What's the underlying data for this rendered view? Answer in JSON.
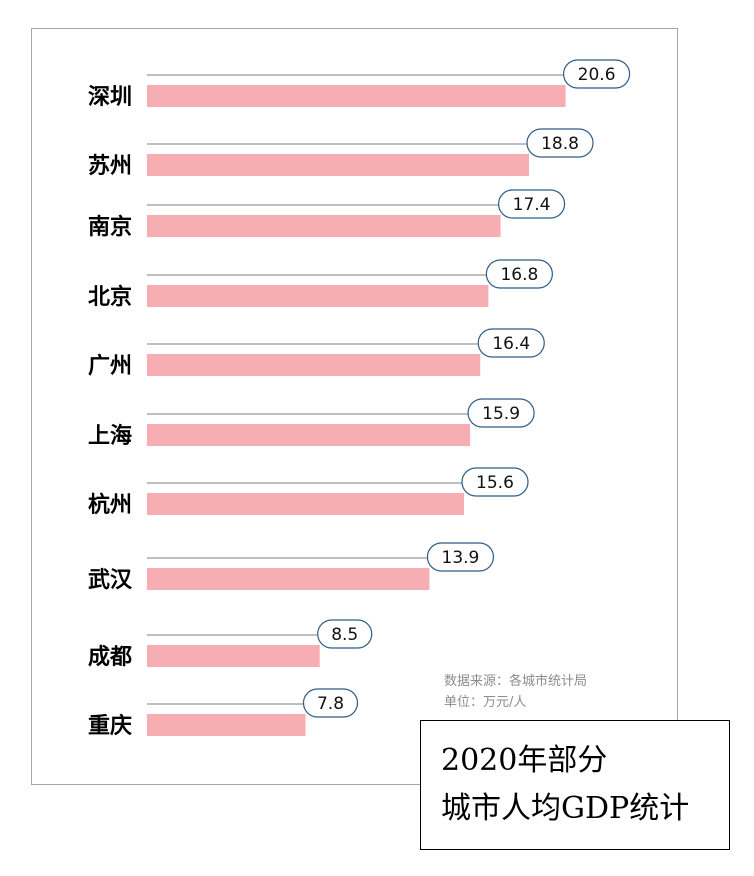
{
  "chart_data": {
    "type": "bar",
    "orientation": "horizontal",
    "categories": [
      "深圳",
      "苏州",
      "南京",
      "北京",
      "广州",
      "上海",
      "杭州",
      "武汉",
      "成都",
      "重庆"
    ],
    "values": [
      20.6,
      18.8,
      17.4,
      16.8,
      16.4,
      15.9,
      15.6,
      13.9,
      8.5,
      7.8
    ],
    "value_labels": [
      "20.6",
      "18.8",
      "17.4",
      "16.8",
      "16.4",
      "15.9",
      "15.6",
      "13.9",
      "8.5",
      "7.8"
    ],
    "title_lines": [
      "2020年部分",
      "城市人均GDP统计"
    ],
    "source": "数据来源：各城市统计局",
    "unit": "单位：万元/人",
    "grid": false,
    "legend": "none",
    "bar_color": "#f7aeb3",
    "callout_border_color": "#2e5c8a",
    "leader_line_color": "#7f7f7f"
  }
}
